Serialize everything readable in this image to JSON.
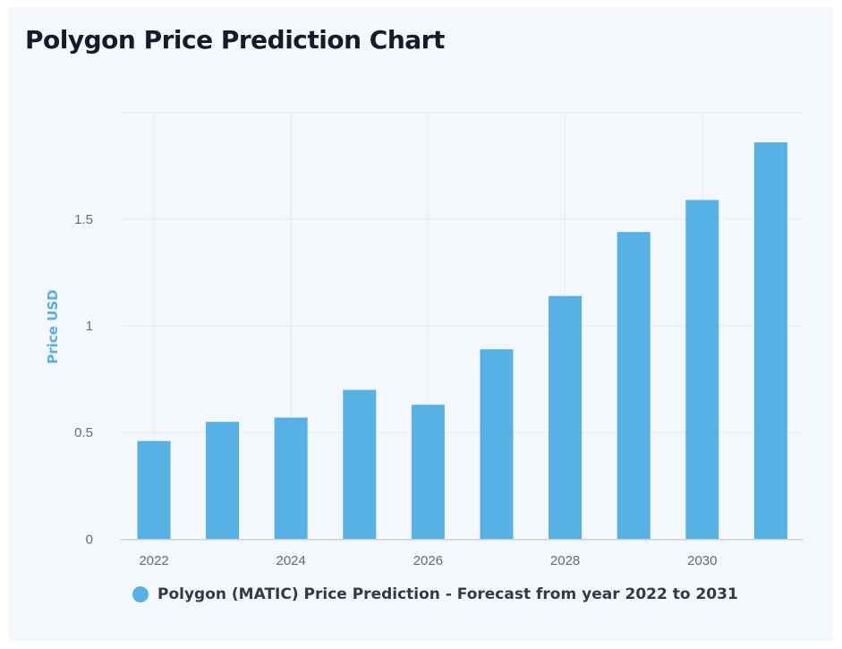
{
  "title": "Polygon Price Prediction Chart",
  "chart_data": {
    "type": "bar",
    "categories": [
      "2022",
      "2023",
      "2024",
      "2025",
      "2026",
      "2027",
      "2028",
      "2029",
      "2030",
      "2031"
    ],
    "series": [
      {
        "name": "Polygon (MATIC) Price Prediction - Forecast from year 2022 to 2031",
        "values": [
          0.46,
          0.55,
          0.57,
          0.7,
          0.63,
          0.89,
          1.14,
          1.44,
          1.59,
          1.86
        ],
        "color": "#56b1e4"
      }
    ],
    "xlabel": "",
    "ylabel": "Price USD",
    "ylim": [
      0,
      2
    ],
    "yticks": [
      "0",
      "0.5",
      "1",
      "1.5"
    ],
    "xticks": [
      "2022",
      "2024",
      "2026",
      "2028",
      "2030"
    ],
    "grid": true,
    "legend": "bottom"
  }
}
